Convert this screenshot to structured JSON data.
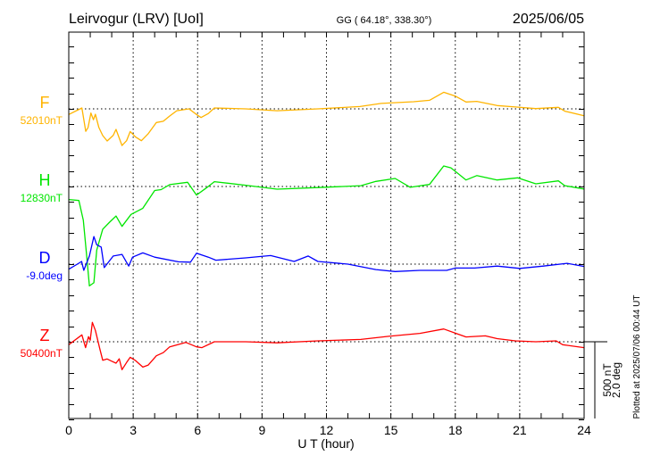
{
  "header": {
    "station": "Leirvogur (LRV)  [UoI]",
    "coords": "GG ( 64.18°, 338.30°)",
    "date": "2025/06/05"
  },
  "footer": {
    "plotted": "Plotted at 2025/07/06 00:44 UT"
  },
  "scale_bar": {
    "nt": "500 nT",
    "deg": "2.0 deg",
    "nt_value": 500,
    "deg_value": 2.0
  },
  "chart_data": {
    "type": "line",
    "title": "Leirvogur (LRV)  [UoI]",
    "xlabel": "U T (hour)",
    "ylabel": "",
    "xlim": [
      0,
      24
    ],
    "xticks": [
      "0",
      "3",
      "6",
      "9",
      "12",
      "15",
      "18",
      "21",
      "24"
    ],
    "grid": true,
    "series": [
      {
        "name": "F",
        "baseline_label": "52010nT",
        "unit": "nT",
        "color": "#ffb400",
        "points": [
          [
            0,
            -36
          ],
          [
            0.61,
            6
          ],
          [
            0.79,
            -145
          ],
          [
            0.9,
            -120
          ],
          [
            1.03,
            -27
          ],
          [
            1.15,
            -70
          ],
          [
            1.24,
            -35
          ],
          [
            1.4,
            -120
          ],
          [
            1.58,
            -172
          ],
          [
            1.79,
            -207
          ],
          [
            2.07,
            -170
          ],
          [
            2.2,
            -132
          ],
          [
            2.48,
            -236
          ],
          [
            2.69,
            -205
          ],
          [
            2.86,
            -146
          ],
          [
            3.1,
            -180
          ],
          [
            3.38,
            -205
          ],
          [
            3.7,
            -160
          ],
          [
            4.08,
            -88
          ],
          [
            4.4,
            -80
          ],
          [
            4.7,
            -46
          ],
          [
            5.03,
            -12
          ],
          [
            5.6,
            0
          ],
          [
            5.95,
            -36
          ],
          [
            6.16,
            -56
          ],
          [
            6.5,
            -30
          ],
          [
            6.78,
            6
          ],
          [
            8.24,
            0
          ],
          [
            9.7,
            -12
          ],
          [
            11.6,
            0
          ],
          [
            13.56,
            15
          ],
          [
            14.55,
            35
          ],
          [
            16.06,
            46
          ],
          [
            16.8,
            55
          ],
          [
            17.46,
            107
          ],
          [
            18.0,
            82
          ],
          [
            18.5,
            44
          ],
          [
            19.0,
            48
          ],
          [
            19.95,
            21
          ],
          [
            20.8,
            12
          ],
          [
            21.75,
            2
          ],
          [
            22.8,
            10
          ],
          [
            23.1,
            -15
          ],
          [
            24,
            -44
          ]
        ]
      },
      {
        "name": "H",
        "baseline_label": "12830nT",
        "unit": "nT",
        "color": "#00e600",
        "points": [
          [
            0,
            -84
          ],
          [
            0.47,
            -90
          ],
          [
            0.68,
            -218
          ],
          [
            0.82,
            -426
          ],
          [
            0.96,
            -640
          ],
          [
            1.17,
            -620
          ],
          [
            1.3,
            -410
          ],
          [
            1.58,
            -275
          ],
          [
            1.9,
            -230
          ],
          [
            2.2,
            -190
          ],
          [
            2.48,
            -257
          ],
          [
            2.9,
            -180
          ],
          [
            3.45,
            -140
          ],
          [
            4.0,
            -26
          ],
          [
            4.3,
            -20
          ],
          [
            4.7,
            12
          ],
          [
            5.53,
            27
          ],
          [
            5.95,
            -55
          ],
          [
            6.4,
            -10
          ],
          [
            6.78,
            31
          ],
          [
            8.24,
            8
          ],
          [
            9.7,
            -17
          ],
          [
            11.6,
            -7
          ],
          [
            13.6,
            5
          ],
          [
            14.3,
            33
          ],
          [
            15.2,
            52
          ],
          [
            15.9,
            -5
          ],
          [
            16.8,
            13
          ],
          [
            17.46,
            132
          ],
          [
            17.8,
            120
          ],
          [
            18.5,
            42
          ],
          [
            19.0,
            70
          ],
          [
            19.95,
            42
          ],
          [
            20.9,
            56
          ],
          [
            21.75,
            17
          ],
          [
            22.8,
            36
          ],
          [
            23.1,
            5
          ],
          [
            24,
            -16
          ]
        ]
      },
      {
        "name": "D",
        "baseline_label": "-9.0deg",
        "unit": "deg",
        "color": "#0000ff",
        "points": [
          [
            0,
            -0.13
          ],
          [
            0.4,
            0.0
          ],
          [
            0.6,
            0.07
          ],
          [
            0.7,
            -0.16
          ],
          [
            0.96,
            0.21
          ],
          [
            1.17,
            0.71
          ],
          [
            1.3,
            0.5
          ],
          [
            1.51,
            0.44
          ],
          [
            1.65,
            -0.09
          ],
          [
            2.07,
            0.21
          ],
          [
            2.48,
            0.25
          ],
          [
            2.79,
            -0.05
          ],
          [
            2.97,
            0.18
          ],
          [
            3.45,
            0.29
          ],
          [
            4.0,
            0.18
          ],
          [
            5.1,
            0.06
          ],
          [
            5.67,
            0.05
          ],
          [
            5.95,
            0.28
          ],
          [
            6.5,
            0.18
          ],
          [
            6.85,
            0.1
          ],
          [
            8.24,
            0.16
          ],
          [
            9.4,
            0.22
          ],
          [
            10.5,
            0.07
          ],
          [
            11.15,
            0.21
          ],
          [
            11.6,
            0.07
          ],
          [
            13.0,
            0.0
          ],
          [
            14.3,
            -0.14
          ],
          [
            15.2,
            -0.19
          ],
          [
            16.35,
            -0.16
          ],
          [
            17.6,
            -0.16
          ],
          [
            18.0,
            -0.1
          ],
          [
            18.9,
            -0.1
          ],
          [
            19.95,
            -0.05
          ],
          [
            21.0,
            -0.11
          ],
          [
            22.1,
            -0.05
          ],
          [
            23.2,
            0.02
          ],
          [
            24,
            -0.06
          ]
        ]
      },
      {
        "name": "Z",
        "baseline_label": "50400nT",
        "unit": "nT",
        "color": "#ff0000",
        "points": [
          [
            0,
            -19
          ],
          [
            0.61,
            44
          ],
          [
            0.78,
            -38
          ],
          [
            0.92,
            33
          ],
          [
            1.0,
            10
          ],
          [
            1.1,
            125
          ],
          [
            1.24,
            73
          ],
          [
            1.44,
            -42
          ],
          [
            1.58,
            -119
          ],
          [
            1.79,
            -111
          ],
          [
            2.0,
            -125
          ],
          [
            2.2,
            -138
          ],
          [
            2.35,
            -110
          ],
          [
            2.48,
            -180
          ],
          [
            2.69,
            -134
          ],
          [
            2.86,
            -100
          ],
          [
            3.1,
            -120
          ],
          [
            3.45,
            -163
          ],
          [
            3.7,
            -150
          ],
          [
            4.08,
            -90
          ],
          [
            4.4,
            -70
          ],
          [
            4.7,
            -33
          ],
          [
            5.45,
            -4
          ],
          [
            5.95,
            -33
          ],
          [
            6.2,
            -38
          ],
          [
            6.78,
            0
          ],
          [
            8.24,
            0
          ],
          [
            9.7,
            -7
          ],
          [
            11.6,
            6
          ],
          [
            13.6,
            15
          ],
          [
            14.9,
            35
          ],
          [
            16.35,
            54
          ],
          [
            17.46,
            82
          ],
          [
            18.0,
            55
          ],
          [
            18.5,
            31
          ],
          [
            19.4,
            38
          ],
          [
            19.95,
            20
          ],
          [
            20.8,
            6
          ],
          [
            21.75,
            0
          ],
          [
            22.7,
            6
          ],
          [
            23.0,
            -19
          ],
          [
            24,
            -38
          ]
        ]
      }
    ]
  }
}
